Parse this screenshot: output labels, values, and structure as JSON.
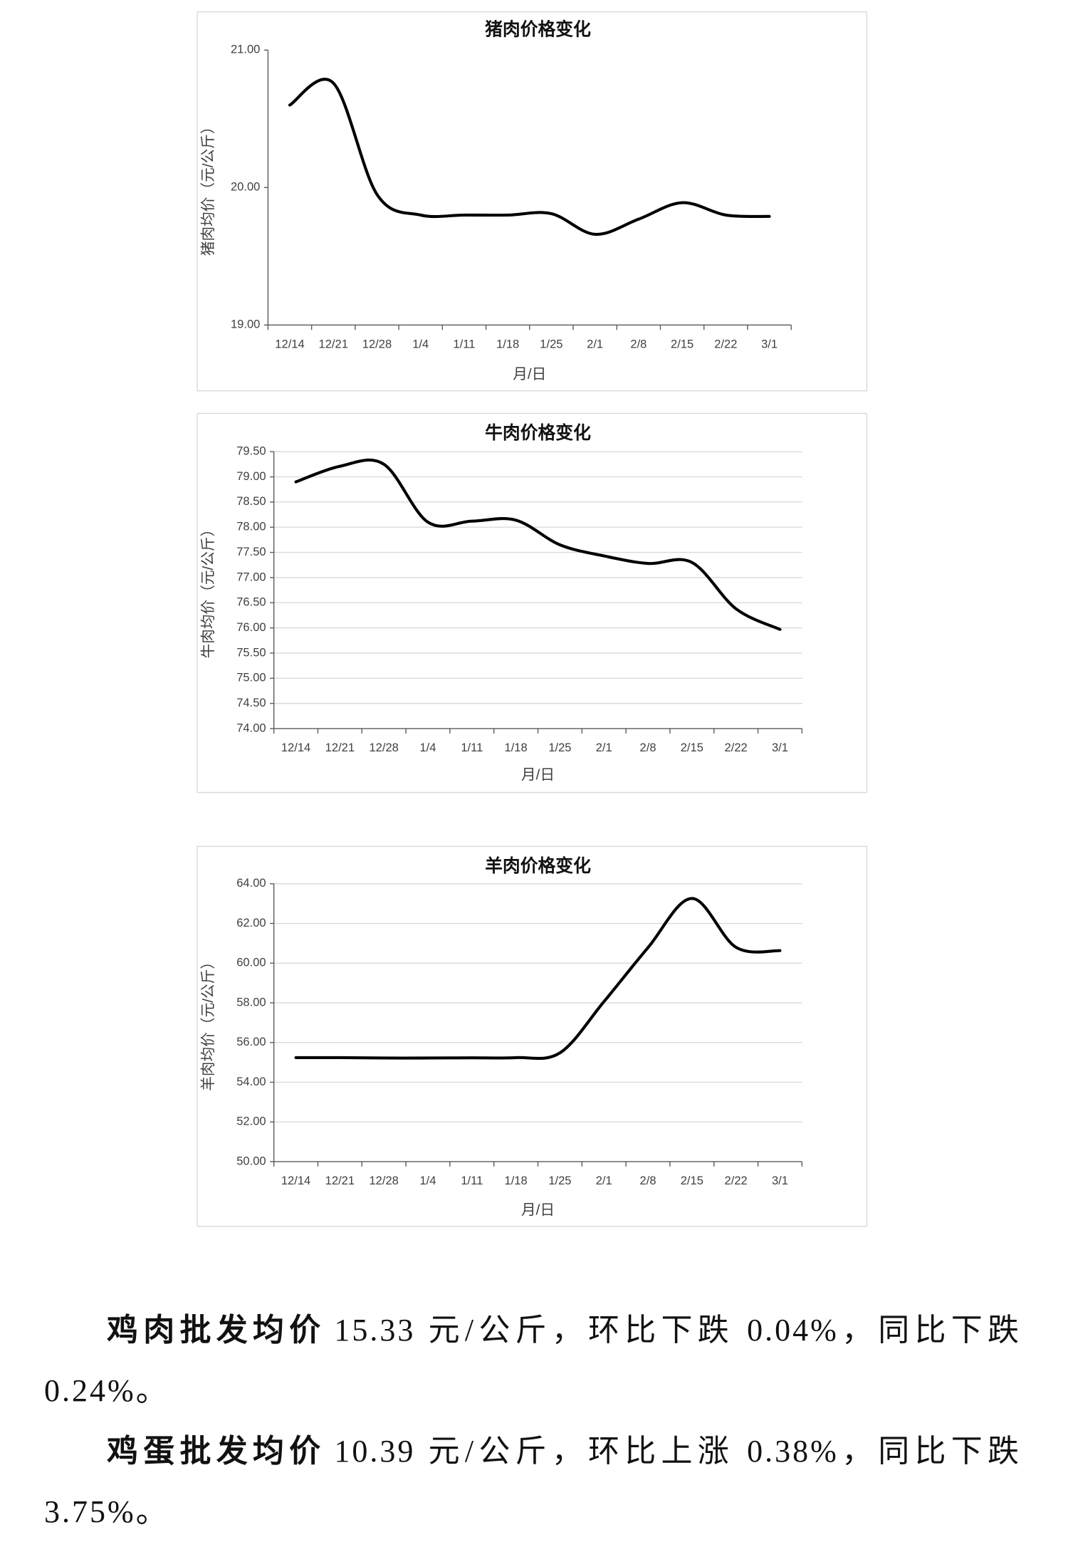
{
  "chart_data": [
    {
      "type": "line",
      "title": "猪肉价格变化",
      "y_label": "猪肉均价（元/公斤）",
      "x_label": "月/日",
      "categories": [
        "12/14",
        "12/21",
        "12/28",
        "1/4",
        "1/11",
        "1/18",
        "1/25",
        "2/1",
        "2/8",
        "2/15",
        "2/22",
        "3/1"
      ],
      "values": [
        20.6,
        20.76,
        19.95,
        19.8,
        19.8,
        19.8,
        19.81,
        19.66,
        19.77,
        19.89,
        19.8,
        19.79
      ],
      "color": "#000000",
      "grid": false,
      "ylim": [
        19,
        21
      ],
      "yticks": [
        {
          "value": 21,
          "label": "21.00"
        },
        {
          "value": 20,
          "label": "20.00"
        },
        {
          "value": 19,
          "label": "19.00"
        }
      ]
    },
    {
      "type": "line",
      "title": "牛肉价格变化",
      "y_label": "牛肉均价（元/公斤）",
      "x_label": "月/日",
      "categories": [
        "12/14",
        "12/21",
        "12/28",
        "1/4",
        "1/11",
        "1/18",
        "1/25",
        "2/1",
        "2/8",
        "2/15",
        "2/22",
        "3/1"
      ],
      "values": [
        78.9,
        79.21,
        79.25,
        78.1,
        78.12,
        78.14,
        77.65,
        77.43,
        77.28,
        77.3,
        76.38,
        75.97
      ],
      "color": "#000000",
      "grid": true,
      "ylim": [
        74,
        79.5
      ],
      "yticks": [
        {
          "value": 79.5,
          "label": "79.50"
        },
        {
          "value": 79,
          "label": "79.00"
        },
        {
          "value": 78.5,
          "label": "78.50"
        },
        {
          "value": 78,
          "label": "78.00"
        },
        {
          "value": 77.5,
          "label": "77.50"
        },
        {
          "value": 77,
          "label": "77.00"
        },
        {
          "value": 76.5,
          "label": "76.50"
        },
        {
          "value": 76,
          "label": "76.00"
        },
        {
          "value": 75.5,
          "label": "75.50"
        },
        {
          "value": 75,
          "label": "75.00"
        },
        {
          "value": 74.5,
          "label": "74.50"
        },
        {
          "value": 74,
          "label": "74.00"
        }
      ]
    },
    {
      "type": "line",
      "title": "羊肉价格变化",
      "y_label": "羊肉均价（元/公斤）",
      "x_label": "月/日",
      "categories": [
        "12/14",
        "12/21",
        "12/28",
        "1/4",
        "1/11",
        "1/18",
        "1/25",
        "2/1",
        "2/8",
        "2/15",
        "2/22",
        "3/1"
      ],
      "values": [
        55.24,
        55.24,
        55.22,
        55.22,
        55.23,
        55.24,
        55.48,
        58.06,
        60.78,
        63.26,
        60.8,
        60.63
      ],
      "color": "#000000",
      "grid": true,
      "ylim": [
        50,
        64
      ],
      "yticks": [
        {
          "value": 64,
          "label": "64.00"
        },
        {
          "value": 62,
          "label": "62.00"
        },
        {
          "value": 60,
          "label": "60.00"
        },
        {
          "value": 58,
          "label": "58.00"
        },
        {
          "value": 56,
          "label": "56.00"
        },
        {
          "value": 54,
          "label": "54.00"
        },
        {
          "value": 52,
          "label": "52.00"
        },
        {
          "value": 50,
          "label": "50.00"
        }
      ]
    }
  ],
  "paragraphs": [
    {
      "lead": "鸡肉批发均价",
      "text": "15.33 元/公斤，环比下跌 0.04%，同比下跌 0.24%。"
    },
    {
      "lead": "鸡蛋批发均价",
      "text": "10.39 元/公斤，环比上涨 0.38%，同比下跌 3.75%。"
    }
  ]
}
